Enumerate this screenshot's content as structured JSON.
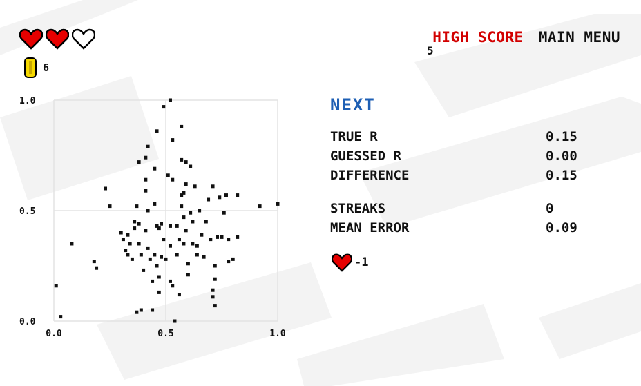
{
  "lives": {
    "total": 3,
    "remaining": 2,
    "full_color": "#e60000",
    "empty_color": "#ffffff",
    "outline_color": "#000000"
  },
  "coins": {
    "icon": "coin-icon",
    "count": "6",
    "color": "#f5d800"
  },
  "nav": {
    "high_score_label": "HIGH SCORE",
    "high_score_value": "5",
    "main_menu_label": "MAIN MENU",
    "accent": "#d20000"
  },
  "next_label": "NEXT",
  "next_color": "#1e5fb4",
  "stats": {
    "true_r": {
      "label": "TRUE R",
      "value": "0.15"
    },
    "guessed_r": {
      "label": "GUESSED R",
      "value": "0.00"
    },
    "difference": {
      "label": "DIFFERENCE",
      "value": "0.15"
    },
    "streaks": {
      "label": "STREAKS",
      "value": "0"
    },
    "mean_error": {
      "label": "MEAN ERROR",
      "value": "0.09"
    }
  },
  "penalty": {
    "icon": "heart-icon",
    "text": "-1"
  },
  "chart_data": {
    "type": "scatter",
    "xlim": [
      0,
      1
    ],
    "ylim": [
      0,
      1
    ],
    "x_ticks": [
      "0.0",
      "0.5",
      "1.0"
    ],
    "y_ticks": [
      "0.0",
      "0.5",
      "1.0"
    ],
    "grid": true,
    "title": "",
    "xlabel": "",
    "ylabel": "",
    "points": [
      [
        0.01,
        0.16
      ],
      [
        0.03,
        0.02
      ],
      [
        0.08,
        0.35
      ],
      [
        0.18,
        0.27
      ],
      [
        0.19,
        0.24
      ],
      [
        0.23,
        0.6
      ],
      [
        0.25,
        0.52
      ],
      [
        0.3,
        0.4
      ],
      [
        0.31,
        0.37
      ],
      [
        0.32,
        0.32
      ],
      [
        0.33,
        0.39
      ],
      [
        0.33,
        0.3
      ],
      [
        0.34,
        0.35
      ],
      [
        0.35,
        0.28
      ],
      [
        0.36,
        0.45
      ],
      [
        0.36,
        0.42
      ],
      [
        0.37,
        0.52
      ],
      [
        0.37,
        0.04
      ],
      [
        0.38,
        0.72
      ],
      [
        0.38,
        0.44
      ],
      [
        0.38,
        0.35
      ],
      [
        0.39,
        0.3
      ],
      [
        0.39,
        0.05
      ],
      [
        0.4,
        0.23
      ],
      [
        0.41,
        0.74
      ],
      [
        0.41,
        0.64
      ],
      [
        0.41,
        0.59
      ],
      [
        0.41,
        0.41
      ],
      [
        0.42,
        0.79
      ],
      [
        0.42,
        0.5
      ],
      [
        0.42,
        0.33
      ],
      [
        0.43,
        0.28
      ],
      [
        0.44,
        0.18
      ],
      [
        0.44,
        0.05
      ],
      [
        0.45,
        0.69
      ],
      [
        0.45,
        0.53
      ],
      [
        0.45,
        0.3
      ],
      [
        0.46,
        0.86
      ],
      [
        0.46,
        0.43
      ],
      [
        0.46,
        0.25
      ],
      [
        0.47,
        0.42
      ],
      [
        0.47,
        0.2
      ],
      [
        0.47,
        0.13
      ],
      [
        0.48,
        0.44
      ],
      [
        0.48,
        0.29
      ],
      [
        0.49,
        0.97
      ],
      [
        0.49,
        0.37
      ],
      [
        0.5,
        0.28
      ],
      [
        0.51,
        0.66
      ],
      [
        0.52,
        1.0
      ],
      [
        0.52,
        0.43
      ],
      [
        0.52,
        0.34
      ],
      [
        0.52,
        0.18
      ],
      [
        0.53,
        0.82
      ],
      [
        0.53,
        0.64
      ],
      [
        0.53,
        0.16
      ],
      [
        0.54,
        0.0
      ],
      [
        0.55,
        0.43
      ],
      [
        0.55,
        0.3
      ],
      [
        0.56,
        0.37
      ],
      [
        0.56,
        0.12
      ],
      [
        0.57,
        0.88
      ],
      [
        0.57,
        0.73
      ],
      [
        0.57,
        0.57
      ],
      [
        0.57,
        0.52
      ],
      [
        0.58,
        0.58
      ],
      [
        0.58,
        0.47
      ],
      [
        0.58,
        0.35
      ],
      [
        0.59,
        0.72
      ],
      [
        0.59,
        0.62
      ],
      [
        0.59,
        0.41
      ],
      [
        0.6,
        0.26
      ],
      [
        0.6,
        0.21
      ],
      [
        0.61,
        0.7
      ],
      [
        0.61,
        0.49
      ],
      [
        0.62,
        0.45
      ],
      [
        0.62,
        0.35
      ],
      [
        0.63,
        0.61
      ],
      [
        0.64,
        0.34
      ],
      [
        0.64,
        0.3
      ],
      [
        0.65,
        0.5
      ],
      [
        0.66,
        0.39
      ],
      [
        0.67,
        0.29
      ],
      [
        0.68,
        0.45
      ],
      [
        0.69,
        0.55
      ],
      [
        0.7,
        0.37
      ],
      [
        0.71,
        0.61
      ],
      [
        0.71,
        0.14
      ],
      [
        0.71,
        0.11
      ],
      [
        0.72,
        0.25
      ],
      [
        0.72,
        0.19
      ],
      [
        0.72,
        0.07
      ],
      [
        0.73,
        0.38
      ],
      [
        0.74,
        0.56
      ],
      [
        0.75,
        0.38
      ],
      [
        0.76,
        0.49
      ],
      [
        0.77,
        0.57
      ],
      [
        0.78,
        0.27
      ],
      [
        0.78,
        0.37
      ],
      [
        0.8,
        0.28
      ],
      [
        0.82,
        0.38
      ],
      [
        0.82,
        0.57
      ],
      [
        0.92,
        0.52
      ],
      [
        1.0,
        0.53
      ]
    ]
  }
}
